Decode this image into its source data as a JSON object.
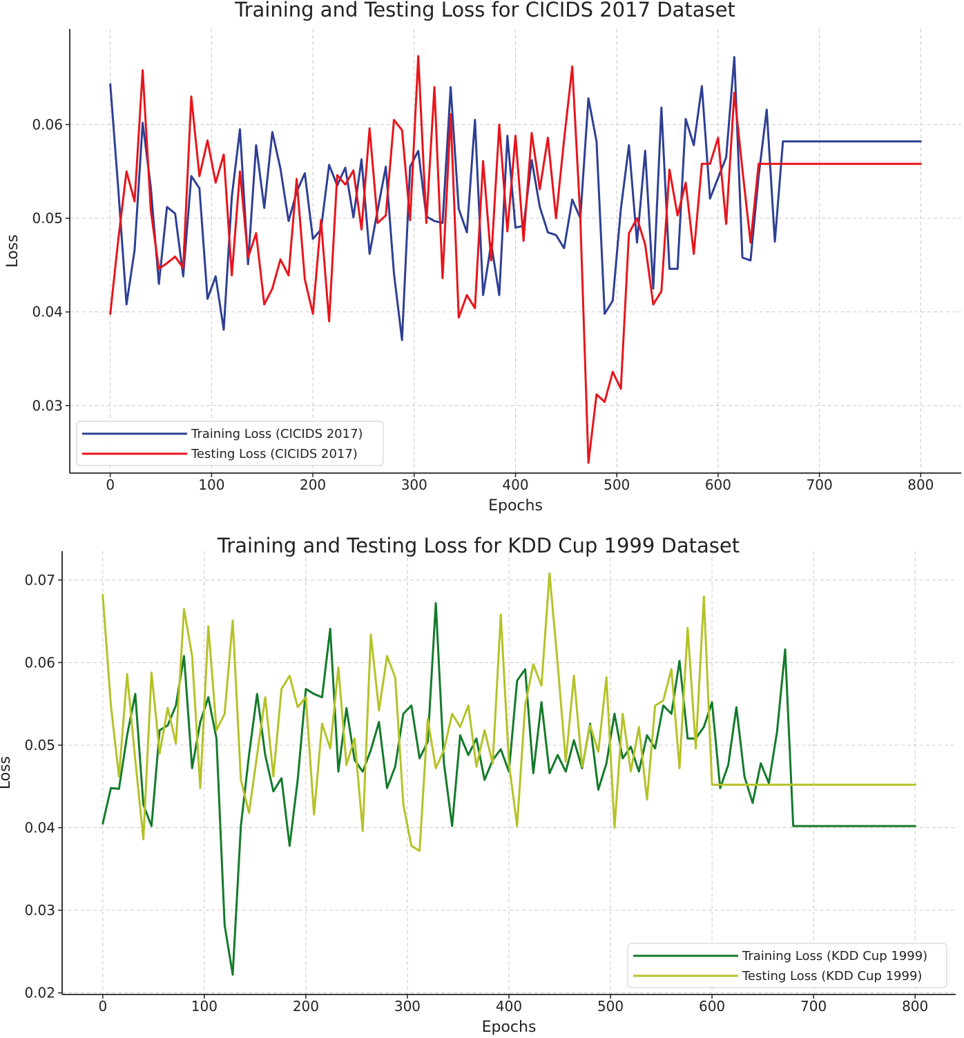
{
  "chart_data": [
    {
      "type": "line",
      "title": "Training and Testing Loss for CICIDS 2017 Dataset",
      "xlabel": "Epochs",
      "ylabel": "Loss",
      "xlim": [
        -40,
        840
      ],
      "ylim": [
        0.0228,
        0.0702
      ],
      "xticks": [
        0,
        100,
        200,
        300,
        400,
        500,
        600,
        700,
        800
      ],
      "yticks": [
        0.03,
        0.04,
        0.05,
        0.06
      ],
      "xtick_labels": [
        "0",
        "100",
        "200",
        "300",
        "400",
        "500",
        "600",
        "700",
        "800"
      ],
      "ytick_labels": [
        "0.03",
        "0.04",
        "0.05",
        "0.06"
      ],
      "grid": true,
      "legend_position": "lower-left",
      "series": [
        {
          "name": "Training Loss (CICIDS 2017)",
          "color": "#2e3f93",
          "x": [
            0,
            8,
            16,
            24,
            32,
            40,
            48,
            56,
            64,
            72,
            80,
            88,
            96,
            104,
            112,
            120,
            128,
            136,
            144,
            152,
            160,
            168,
            176,
            184,
            192,
            200,
            208,
            216,
            224,
            232,
            240,
            248,
            256,
            264,
            272,
            280,
            288,
            296,
            304,
            312,
            320,
            328,
            336,
            344,
            352,
            360,
            368,
            376,
            384,
            392,
            400,
            408,
            416,
            424,
            432,
            440,
            448,
            456,
            464,
            472,
            480,
            488,
            496,
            504,
            512,
            520,
            528,
            536,
            544,
            552,
            560,
            568,
            576,
            584,
            592,
            600,
            608,
            616,
            624,
            632,
            640,
            648,
            656,
            664,
            672,
            680,
            688,
            696,
            704,
            712,
            720,
            728,
            736,
            744,
            752,
            760,
            768,
            776,
            784,
            792,
            800
          ],
          "y": [
            0.0643,
            0.053,
            0.0408,
            0.0466,
            0.0602,
            0.0533,
            0.043,
            0.0512,
            0.0505,
            0.0438,
            0.0545,
            0.0532,
            0.0414,
            0.0438,
            0.0381,
            0.0523,
            0.0595,
            0.0451,
            0.0578,
            0.0511,
            0.0592,
            0.0553,
            0.0497,
            0.0528,
            0.0548,
            0.0478,
            0.0488,
            0.0557,
            0.0535,
            0.0554,
            0.0501,
            0.0563,
            0.0462,
            0.0509,
            0.0555,
            0.0441,
            0.037,
            0.0555,
            0.0572,
            0.0502,
            0.0497,
            0.0495,
            0.064,
            0.051,
            0.0485,
            0.0605,
            0.0418,
            0.0473,
            0.0418,
            0.0588,
            0.049,
            0.0492,
            0.0562,
            0.0512,
            0.0485,
            0.0482,
            0.0468,
            0.052,
            0.05,
            0.0628,
            0.0582,
            0.0398,
            0.0412,
            0.051,
            0.0578,
            0.0474,
            0.0572,
            0.0425,
            0.0618,
            0.0446,
            0.0446,
            0.0606,
            0.0578,
            0.0641,
            0.0521,
            0.0543,
            0.0565,
            0.0672,
            0.0458,
            0.0455,
            0.0545,
            0.0616,
            0.0475,
            0.0582,
            0.0582,
            0.0582,
            0.0582,
            0.0582,
            0.0582,
            0.0582,
            0.0582,
            0.0582,
            0.0582,
            0.0582,
            0.0582,
            0.0582,
            0.0582,
            0.0582,
            0.0582,
            0.0582,
            0.0582
          ]
        },
        {
          "name": "Testing Loss (CICIDS 2017)",
          "color": "#e8141b",
          "x": [
            0,
            8,
            16,
            24,
            32,
            40,
            48,
            56,
            64,
            72,
            80,
            88,
            96,
            104,
            112,
            120,
            128,
            136,
            144,
            152,
            160,
            168,
            176,
            184,
            192,
            200,
            208,
            216,
            224,
            232,
            240,
            248,
            256,
            264,
            272,
            280,
            288,
            296,
            304,
            312,
            320,
            328,
            336,
            344,
            352,
            360,
            368,
            376,
            384,
            392,
            400,
            408,
            416,
            424,
            432,
            440,
            448,
            456,
            464,
            472,
            480,
            488,
            496,
            504,
            512,
            520,
            528,
            536,
            544,
            552,
            560,
            568,
            576,
            584,
            592,
            600,
            608,
            616,
            624,
            632,
            640,
            648,
            656,
            664,
            672,
            680,
            688,
            696,
            704,
            712,
            720,
            728,
            736,
            744,
            752,
            760,
            768,
            776,
            784,
            792,
            800
          ],
          "y": [
            0.0398,
            0.0478,
            0.055,
            0.0518,
            0.0658,
            0.0508,
            0.0446,
            0.0452,
            0.0459,
            0.0447,
            0.063,
            0.0545,
            0.0583,
            0.0538,
            0.0568,
            0.0439,
            0.055,
            0.0458,
            0.0484,
            0.0408,
            0.0425,
            0.0456,
            0.0439,
            0.0542,
            0.0435,
            0.0398,
            0.0498,
            0.039,
            0.0546,
            0.0536,
            0.0551,
            0.0488,
            0.0596,
            0.0495,
            0.0503,
            0.0605,
            0.0594,
            0.0498,
            0.0673,
            0.0495,
            0.064,
            0.0436,
            0.0611,
            0.0394,
            0.0418,
            0.0404,
            0.0561,
            0.0455,
            0.06,
            0.0486,
            0.0588,
            0.0476,
            0.0591,
            0.0531,
            0.0586,
            0.05,
            0.0584,
            0.0662,
            0.05,
            0.0239,
            0.0312,
            0.0304,
            0.0336,
            0.0318,
            0.0484,
            0.05,
            0.0472,
            0.0408,
            0.0422,
            0.0552,
            0.0503,
            0.0538,
            0.0462,
            0.0558,
            0.0558,
            0.0586,
            0.0494,
            0.0634,
            0.0552,
            0.0474,
            0.0558,
            0.0558,
            0.0558,
            0.0558,
            0.0558,
            0.0558,
            0.0558,
            0.0558,
            0.0558,
            0.0558,
            0.0558,
            0.0558,
            0.0558,
            0.0558,
            0.0558,
            0.0558,
            0.0558,
            0.0558,
            0.0558,
            0.0558,
            0.0558
          ]
        }
      ]
    },
    {
      "type": "line",
      "title": "Training and Testing Loss for KDD Cup 1999 Dataset",
      "xlabel": "Epochs",
      "ylabel": "Loss",
      "xlim": [
        -40,
        840
      ],
      "ylim": [
        0.0198,
        0.0735
      ],
      "xticks": [
        0,
        100,
        200,
        300,
        400,
        500,
        600,
        700,
        800
      ],
      "yticks": [
        0.02,
        0.03,
        0.04,
        0.05,
        0.06,
        0.07
      ],
      "xtick_labels": [
        "0",
        "100",
        "200",
        "300",
        "400",
        "500",
        "600",
        "700",
        "800"
      ],
      "ytick_labels": [
        "0.02",
        "0.03",
        "0.04",
        "0.05",
        "0.06",
        "0.07"
      ],
      "grid": true,
      "legend_position": "lower-right",
      "series": [
        {
          "name": "Training Loss (KDD Cup 1999)",
          "color": "#137a2a",
          "x": [
            0,
            8,
            16,
            24,
            32,
            40,
            48,
            56,
            64,
            72,
            80,
            88,
            96,
            104,
            112,
            120,
            128,
            136,
            144,
            152,
            160,
            168,
            176,
            184,
            192,
            200,
            208,
            216,
            224,
            232,
            240,
            248,
            256,
            264,
            272,
            280,
            288,
            296,
            304,
            312,
            320,
            328,
            336,
            344,
            352,
            360,
            368,
            376,
            384,
            392,
            400,
            408,
            416,
            424,
            432,
            440,
            448,
            456,
            464,
            472,
            480,
            488,
            496,
            504,
            512,
            520,
            528,
            536,
            544,
            552,
            560,
            568,
            576,
            584,
            592,
            600,
            608,
            616,
            624,
            632,
            640,
            648,
            656,
            664,
            672,
            680,
            688,
            696,
            704,
            712,
            720,
            728,
            736,
            744,
            752,
            760,
            768,
            776,
            784,
            792,
            800
          ],
          "y": [
            0.0405,
            0.0448,
            0.0447,
            0.0512,
            0.0562,
            0.0428,
            0.0402,
            0.0518,
            0.0524,
            0.0548,
            0.0608,
            0.0472,
            0.0528,
            0.0558,
            0.0508,
            0.0282,
            0.0222,
            0.0402,
            0.0488,
            0.0562,
            0.0488,
            0.0444,
            0.046,
            0.0378,
            0.0458,
            0.0568,
            0.0562,
            0.0558,
            0.0641,
            0.0468,
            0.0545,
            0.0482,
            0.0468,
            0.0494,
            0.0528,
            0.0448,
            0.0474,
            0.0538,
            0.0548,
            0.0484,
            0.0504,
            0.0672,
            0.0478,
            0.0402,
            0.0512,
            0.0488,
            0.0508,
            0.0458,
            0.0482,
            0.0495,
            0.0468,
            0.0578,
            0.0592,
            0.0466,
            0.0552,
            0.0466,
            0.0488,
            0.0468,
            0.0506,
            0.0472,
            0.0526,
            0.0446,
            0.0478,
            0.0538,
            0.0484,
            0.0498,
            0.0468,
            0.0512,
            0.0496,
            0.0548,
            0.0538,
            0.0602,
            0.0508,
            0.0508,
            0.0522,
            0.0552,
            0.0448,
            0.0476,
            0.0546,
            0.0462,
            0.043,
            0.0478,
            0.0454,
            0.0516,
            0.0616,
            0.0402,
            0.0402,
            0.0402,
            0.0402,
            0.0402,
            0.0402,
            0.0402,
            0.0402,
            0.0402,
            0.0402,
            0.0402,
            0.0402,
            0.0402,
            0.0402,
            0.0402,
            0.0402
          ]
        },
        {
          "name": "Testing Loss (KDD Cup 1999)",
          "color": "#b5c227",
          "x": [
            0,
            8,
            16,
            24,
            32,
            40,
            48,
            56,
            64,
            72,
            80,
            88,
            96,
            104,
            112,
            120,
            128,
            136,
            144,
            152,
            160,
            168,
            176,
            184,
            192,
            200,
            208,
            216,
            224,
            232,
            240,
            248,
            256,
            264,
            272,
            280,
            288,
            296,
            304,
            312,
            320,
            328,
            336,
            344,
            352,
            360,
            368,
            376,
            384,
            392,
            400,
            408,
            416,
            424,
            432,
            440,
            448,
            456,
            464,
            472,
            480,
            488,
            496,
            504,
            512,
            520,
            528,
            536,
            544,
            552,
            560,
            568,
            576,
            584,
            592,
            600,
            608,
            616,
            624,
            632,
            640,
            648,
            656,
            664,
            672,
            680,
            688,
            696,
            704,
            712,
            720,
            728,
            736,
            744,
            752,
            760,
            768,
            776,
            784,
            792,
            800
          ],
          "y": [
            0.0682,
            0.0548,
            0.0462,
            0.0586,
            0.0482,
            0.0386,
            0.0588,
            0.049,
            0.0545,
            0.0502,
            0.0665,
            0.0608,
            0.0448,
            0.0644,
            0.0518,
            0.0538,
            0.0651,
            0.0458,
            0.0418,
            0.0488,
            0.0558,
            0.0462,
            0.0568,
            0.0584,
            0.0546,
            0.0558,
            0.0416,
            0.0526,
            0.0496,
            0.0594,
            0.0476,
            0.0508,
            0.0396,
            0.0634,
            0.0542,
            0.0608,
            0.0582,
            0.0428,
            0.0378,
            0.0372,
            0.0532,
            0.0472,
            0.0494,
            0.0538,
            0.0522,
            0.0548,
            0.0474,
            0.0518,
            0.0478,
            0.0658,
            0.0478,
            0.0402,
            0.0548,
            0.0598,
            0.0572,
            0.0708,
            0.0598,
            0.048,
            0.0584,
            0.0474,
            0.0524,
            0.0492,
            0.0582,
            0.04,
            0.0538,
            0.0468,
            0.0522,
            0.0434,
            0.0548,
            0.0554,
            0.0592,
            0.0472,
            0.0642,
            0.0496,
            0.068,
            0.0452,
            0.0452,
            0.0452,
            0.0452,
            0.0452,
            0.0452,
            0.0452,
            0.0452,
            0.0452,
            0.0452,
            0.0452,
            0.0452,
            0.0452,
            0.0452,
            0.0452,
            0.0452,
            0.0452,
            0.0452,
            0.0452,
            0.0452,
            0.0452,
            0.0452,
            0.0452,
            0.0452,
            0.0452,
            0.0452
          ]
        }
      ]
    }
  ]
}
